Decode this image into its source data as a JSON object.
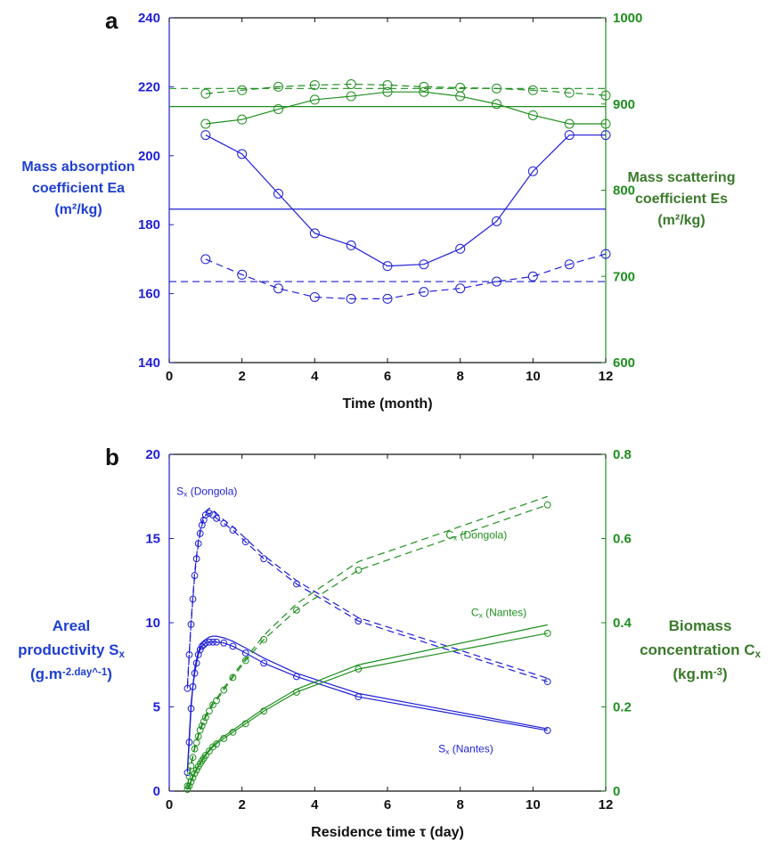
{
  "colors": {
    "blue": "#1f1fd6",
    "green": "#1e8f1e",
    "left_label": "#1f3fd0",
    "right_label": "#3a7a2a",
    "black": "#111111"
  },
  "chart_data": [
    {
      "type": "line",
      "panel_label": "a",
      "xlabel": "Time (month)",
      "ylabel_lines": [
        "Mass absorption",
        "coefficient Ea",
        "(m²/kg)"
      ],
      "y2label_lines": [
        "Mass scattering",
        "coefficient Es",
        "(m²/kg)"
      ],
      "xlim": [
        0,
        12
      ],
      "ylim": [
        140,
        240
      ],
      "y2lim": [
        600,
        1000
      ],
      "xticks": [
        0,
        2,
        4,
        6,
        8,
        10,
        12
      ],
      "yticks": [
        140,
        160,
        180,
        200,
        220,
        240
      ],
      "y2ticks": [
        600,
        700,
        800,
        900,
        1000
      ],
      "grid": false,
      "series": [
        {
          "axis": "left",
          "color": "blue",
          "style": "solid",
          "markers": true,
          "x": [
            1,
            2,
            3,
            4,
            5,
            6,
            7,
            8,
            9,
            10,
            11,
            12
          ],
          "y": [
            206,
            200.5,
            189,
            177.5,
            174,
            168,
            168.5,
            173,
            181,
            195.5,
            206,
            206
          ]
        },
        {
          "axis": "left",
          "color": "blue",
          "style": "dashed",
          "markers": true,
          "x": [
            1,
            2,
            3,
            4,
            5,
            6,
            7,
            8,
            9,
            10,
            11,
            12
          ],
          "y": [
            170,
            165.5,
            161.5,
            159,
            158.5,
            158.5,
            160.5,
            161.5,
            163.5,
            165,
            168.5,
            171.5
          ]
        },
        {
          "axis": "left",
          "color": "blue",
          "style": "solid",
          "markers": false,
          "x": [
            0,
            12
          ],
          "y": [
            184.5,
            184.5
          ]
        },
        {
          "axis": "left",
          "color": "blue",
          "style": "dashed",
          "markers": false,
          "x": [
            0,
            12
          ],
          "y": [
            163.5,
            163.5
          ]
        },
        {
          "axis": "right",
          "color": "green",
          "style": "solid",
          "markers": true,
          "x": [
            1,
            2,
            3,
            4,
            5,
            6,
            7,
            8,
            9,
            10,
            11,
            12
          ],
          "y": [
            877,
            882,
            894,
            905,
            909,
            914,
            914,
            909,
            900,
            887,
            877,
            877
          ]
        },
        {
          "axis": "right",
          "color": "green",
          "style": "dashed",
          "markers": true,
          "x": [
            1,
            2,
            3,
            4,
            5,
            6,
            7,
            8,
            9,
            10,
            11,
            12
          ],
          "y": [
            912,
            916,
            920,
            922,
            923,
            922,
            920,
            919,
            918,
            916,
            913,
            910
          ]
        },
        {
          "axis": "right",
          "color": "green",
          "style": "solid",
          "markers": false,
          "x": [
            0,
            12
          ],
          "y": [
            897,
            897
          ]
        },
        {
          "axis": "right",
          "color": "green",
          "style": "dashed",
          "markers": false,
          "x": [
            0,
            12
          ],
          "y": [
            918,
            918
          ]
        }
      ]
    },
    {
      "type": "line",
      "panel_label": "b",
      "xlabel": "Residence time τ (day)",
      "ylabel_lines": [
        "Areal",
        "productivity S_x",
        "(g.m^-2.day^-1)"
      ],
      "y2label_lines": [
        "Biomass",
        "concentration C_x",
        "(kg.m^-3)"
      ],
      "xlim": [
        0,
        12
      ],
      "ylim": [
        0,
        20
      ],
      "y2lim": [
        0,
        0.8
      ],
      "xticks": [
        0,
        2,
        4,
        6,
        8,
        10,
        12
      ],
      "yticks": [
        0,
        5,
        10,
        15,
        20
      ],
      "y2ticks": [
        0,
        0.2,
        0.4,
        0.6,
        0.8
      ],
      "grid": false,
      "annotations": [
        {
          "text": "Sx (Dongola)",
          "color": "blue",
          "x": 0.2,
          "y": 17.6,
          "axis": "left"
        },
        {
          "text": "Cx (Dongola)",
          "color": "green",
          "x": 7.6,
          "y": 0.6,
          "axis": "right"
        },
        {
          "text": "Cx (Nantes)",
          "color": "green",
          "x": 8.3,
          "y": 0.416,
          "axis": "right"
        },
        {
          "text": "Sx (Nantes)",
          "color": "blue",
          "x": 7.4,
          "y": 2.3,
          "axis": "left"
        }
      ],
      "series": [
        {
          "axis": "left",
          "color": "blue",
          "style": "dashed",
          "markers": true,
          "x": [
            0.5,
            0.55,
            0.6,
            0.65,
            0.7,
            0.75,
            0.8,
            0.85,
            0.9,
            0.95,
            1.0,
            1.1,
            1.2,
            1.3,
            1.5,
            1.75,
            2.1,
            2.6,
            3.5,
            5.2,
            10.4
          ],
          "y": [
            6.1,
            8.1,
            9.9,
            11.4,
            12.8,
            13.8,
            14.7,
            15.3,
            15.8,
            16.1,
            16.4,
            16.5,
            16.4,
            16.2,
            15.9,
            15.5,
            14.8,
            13.8,
            12.3,
            10.1,
            6.5
          ]
        },
        {
          "axis": "left",
          "color": "blue",
          "style": "dashed",
          "markers": false,
          "x": [
            0.5,
            0.6,
            0.7,
            0.8,
            0.9,
            1.0,
            1.1,
            1.2,
            1.3,
            1.5,
            1.75,
            2.1,
            2.6,
            3.5,
            5.2,
            10.4
          ],
          "y": [
            6.3,
            10.1,
            13.0,
            14.9,
            16.0,
            16.6,
            16.8,
            16.7,
            16.5,
            16.1,
            15.7,
            15.0,
            14.0,
            12.5,
            10.3,
            6.7
          ]
        },
        {
          "axis": "left",
          "color": "blue",
          "style": "solid",
          "markers": true,
          "x": [
            0.5,
            0.55,
            0.6,
            0.65,
            0.7,
            0.75,
            0.8,
            0.85,
            0.9,
            0.95,
            1.0,
            1.1,
            1.2,
            1.3,
            1.5,
            1.75,
            2.1,
            2.6,
            3.5,
            5.2,
            10.4
          ],
          "y": [
            1.1,
            2.9,
            4.9,
            6.2,
            7.0,
            7.6,
            8.1,
            8.4,
            8.6,
            8.7,
            8.8,
            8.85,
            8.85,
            8.85,
            8.8,
            8.6,
            8.2,
            7.6,
            6.8,
            5.6,
            3.6
          ]
        },
        {
          "axis": "left",
          "color": "blue",
          "style": "solid",
          "markers": false,
          "x": [
            0.5,
            0.6,
            0.7,
            0.8,
            0.9,
            1.0,
            1.1,
            1.2,
            1.3,
            1.5,
            1.75,
            2.1,
            2.6,
            3.5,
            5.2,
            10.4
          ],
          "y": [
            1.3,
            5.2,
            7.3,
            8.3,
            8.8,
            9.0,
            9.15,
            9.2,
            9.2,
            9.1,
            8.9,
            8.5,
            7.9,
            7.0,
            5.8,
            3.7
          ]
        },
        {
          "axis": "right",
          "color": "green",
          "style": "dashed",
          "markers": true,
          "x": [
            0.5,
            0.55,
            0.6,
            0.65,
            0.7,
            0.75,
            0.8,
            0.85,
            0.9,
            0.95,
            1.0,
            1.1,
            1.2,
            1.3,
            1.5,
            1.75,
            2.1,
            2.6,
            3.5,
            5.2,
            10.4
          ],
          "y": [
            0.012,
            0.035,
            0.06,
            0.08,
            0.1,
            0.115,
            0.13,
            0.145,
            0.155,
            0.165,
            0.175,
            0.19,
            0.205,
            0.215,
            0.24,
            0.27,
            0.31,
            0.36,
            0.43,
            0.525,
            0.68
          ]
        },
        {
          "axis": "right",
          "color": "green",
          "style": "dashed",
          "markers": false,
          "x": [
            0.5,
            0.6,
            0.7,
            0.8,
            0.9,
            1.0,
            1.1,
            1.2,
            1.3,
            1.5,
            1.75,
            2.1,
            2.6,
            3.5,
            5.2,
            10.4
          ],
          "y": [
            0.013,
            0.065,
            0.105,
            0.135,
            0.16,
            0.18,
            0.195,
            0.21,
            0.22,
            0.245,
            0.275,
            0.315,
            0.37,
            0.445,
            0.545,
            0.7
          ]
        },
        {
          "axis": "right",
          "color": "green",
          "style": "solid",
          "markers": true,
          "x": [
            0.5,
            0.55,
            0.6,
            0.65,
            0.7,
            0.75,
            0.8,
            0.85,
            0.9,
            0.95,
            1.0,
            1.1,
            1.2,
            1.3,
            1.5,
            1.75,
            2.1,
            2.6,
            3.5,
            5.2,
            10.4
          ],
          "y": [
            0.004,
            0.012,
            0.022,
            0.032,
            0.042,
            0.05,
            0.058,
            0.065,
            0.072,
            0.078,
            0.085,
            0.095,
            0.105,
            0.112,
            0.125,
            0.14,
            0.16,
            0.19,
            0.235,
            0.29,
            0.375
          ]
        },
        {
          "axis": "right",
          "color": "green",
          "style": "solid",
          "markers": false,
          "x": [
            0.5,
            0.6,
            0.7,
            0.8,
            0.9,
            1.0,
            1.1,
            1.2,
            1.3,
            1.5,
            1.75,
            2.1,
            2.6,
            3.5,
            5.2,
            10.4
          ],
          "y": [
            0.005,
            0.025,
            0.045,
            0.06,
            0.075,
            0.088,
            0.098,
            0.108,
            0.116,
            0.13,
            0.145,
            0.166,
            0.196,
            0.242,
            0.3,
            0.395
          ]
        }
      ]
    }
  ]
}
